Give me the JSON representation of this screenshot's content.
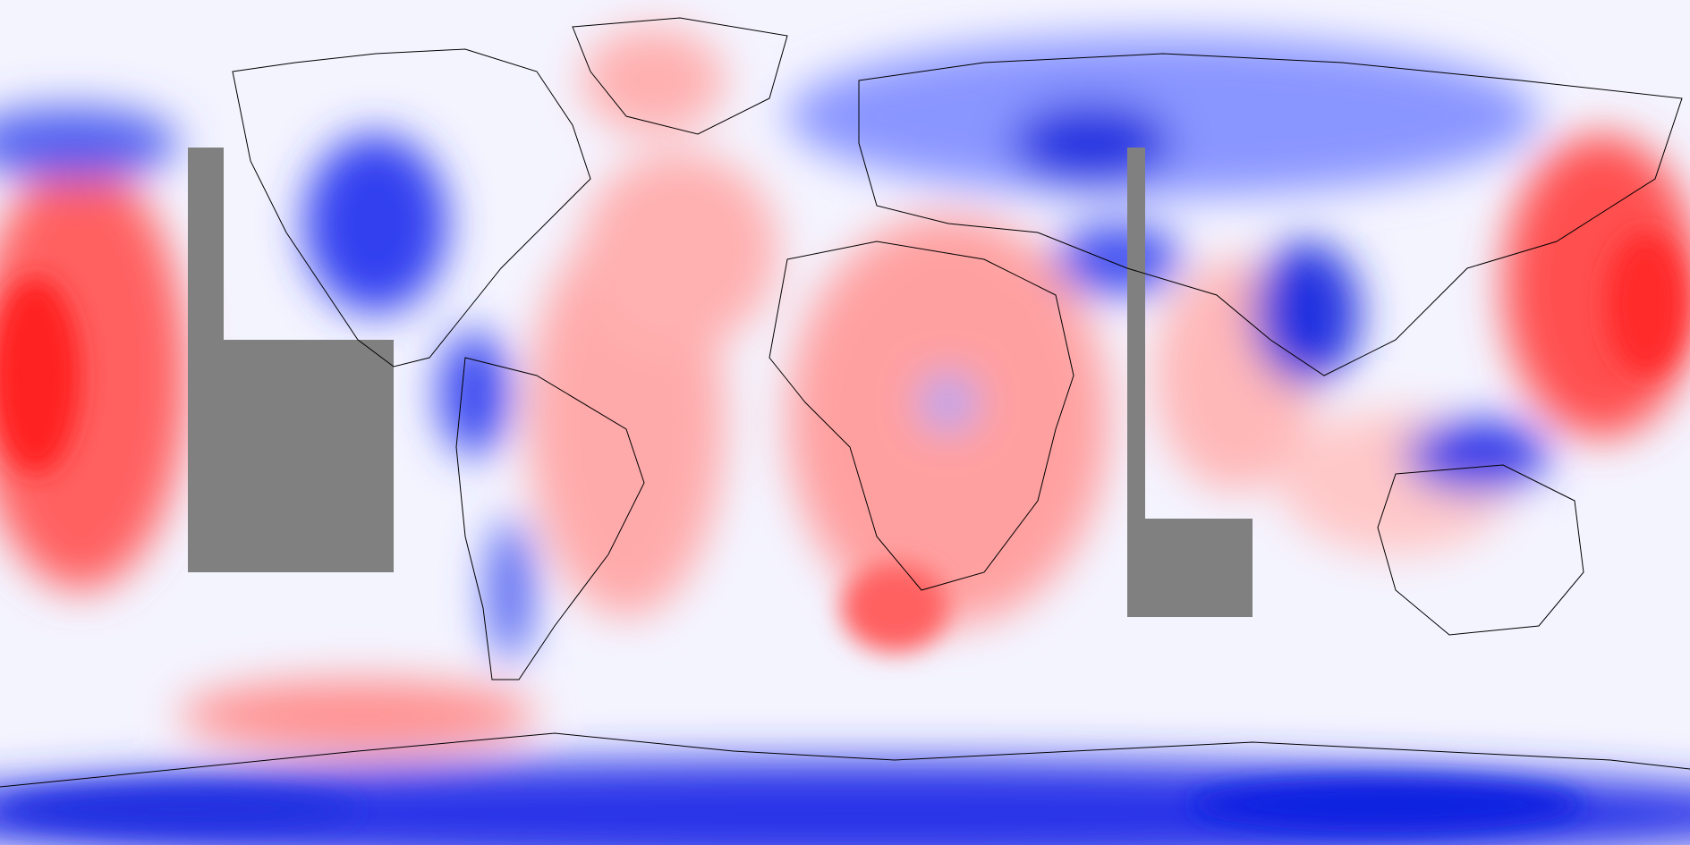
{
  "map": {
    "projection": "equirectangular",
    "palette": {
      "missing": "#808080",
      "neutral": "#f4f4ff",
      "warm_light": "#ffd0d0",
      "warm_mid": "#ff9a9a",
      "warm_strong": "#ff3030",
      "cool_light": "#d0d6ff",
      "cool_mid": "#8a96ff",
      "cool_strong": "#1a22e8",
      "coastline": "#000000"
    },
    "features": [
      "north-pacific-warm-anomaly",
      "western-pacific-warm-anomaly",
      "north-america-cold-anomaly",
      "siberia-cold-anomaly",
      "southeast-asia-cold-anomaly",
      "maritime-continent-cold-anomaly",
      "africa-warm-anomaly",
      "south-atlantic-warm-anomaly",
      "southern-ocean-cold-band",
      "antarctic-coast-warm-anomaly"
    ]
  }
}
